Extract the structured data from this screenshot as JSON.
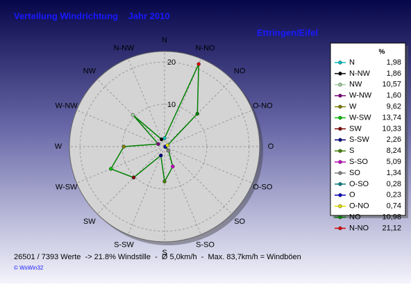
{
  "chart_data": {
    "type": "radar",
    "title": "Verteilung Windrichtung    Jahr 2010",
    "subtitle": "Ettringen/Eifel",
    "legend_header": "%",
    "categories": [
      "N",
      "N-NW",
      "NW",
      "W-NW",
      "W",
      "W-SW",
      "SW",
      "S-SW",
      "S",
      "S-SO",
      "SO",
      "O-SO",
      "O",
      "O-NO",
      "NO",
      "N-NO"
    ],
    "values": [
      1.98,
      1.86,
      10.57,
      1.6,
      9.62,
      13.74,
      10.33,
      2.26,
      8.24,
      5.09,
      1.34,
      0.28,
      0.23,
      0.74,
      10.98,
      21.12
    ],
    "value_labels": [
      "1,98",
      "1,86",
      "10,57",
      "1,60",
      "9,62",
      "13,74",
      "10,33",
      "2,26",
      "8,24",
      "5,09",
      "1,34",
      "0,28",
      "0,23",
      "0,74",
      "10,98",
      "21,12"
    ],
    "colors": [
      "#00c0c0",
      "#000000",
      "#a0d0a0",
      "#800080",
      "#808000",
      "#00c000",
      "#800000",
      "#000080",
      "#408000",
      "#c000c0",
      "#808080",
      "#008080",
      "#0000c0",
      "#e0e000",
      "#008000",
      "#e00000"
    ],
    "line_color": "#008000",
    "rlim": [
      0,
      22.5
    ],
    "rticks": [
      10,
      20
    ],
    "grid": true,
    "footer": "26501 / 7393 Werte  -> 21.8% Windstille  -  Ø 5,0km/h  -  Max. 83,7km/h = Windböen",
    "credit": "© WsWin32"
  }
}
